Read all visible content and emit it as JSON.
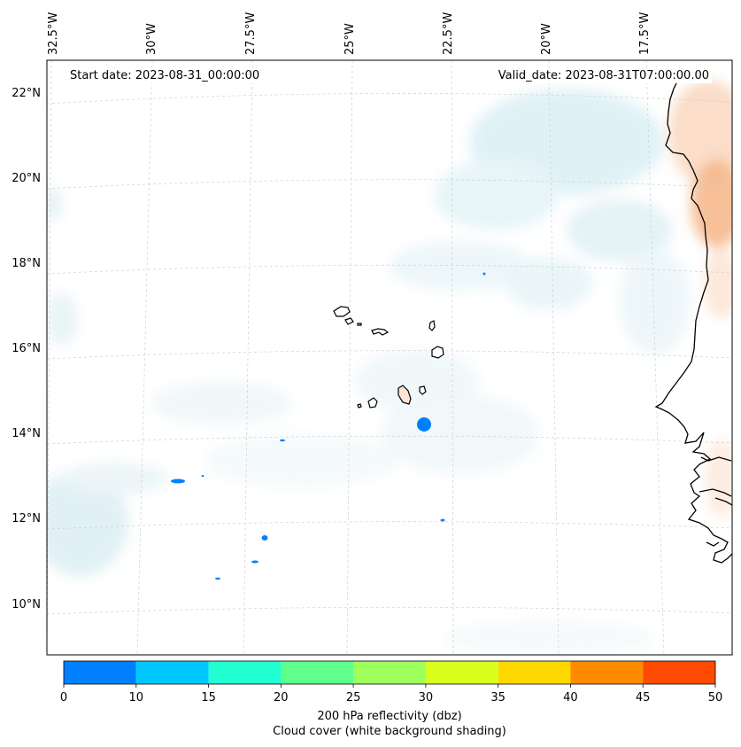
{
  "map": {
    "start_date": "Start date: 2023-08-31_00:00:00",
    "valid_date": "Valid_date: 2023-08-31T07:00:00.00",
    "longitude_labels": [
      "32.5°W",
      "30°W",
      "27.5°W",
      "25°W",
      "22.5°W",
      "20°W",
      "17.5°W"
    ],
    "latitude_labels": [
      "22°N",
      "20°N",
      "18°N",
      "16°N",
      "14°N",
      "12°N",
      "10°N"
    ]
  },
  "colorbar": {
    "ticks": [
      "0",
      "10",
      "15",
      "20",
      "25",
      "30",
      "35",
      "40",
      "45",
      "50"
    ],
    "colors": [
      "#0080ff",
      "#00c8ff",
      "#21ffd2",
      "#5fff8c",
      "#9cff5a",
      "#d8ff1e",
      "#ffd800",
      "#ff8c00",
      "#ff4b00"
    ],
    "label_line1": "200 hPa reflectivity (dbz)",
    "label_line2": "Cloud cover (white background shading)"
  }
}
